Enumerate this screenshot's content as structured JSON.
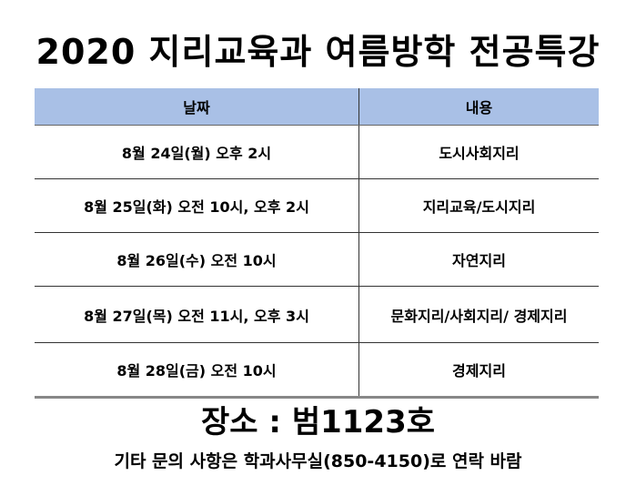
{
  "title": "2020 지리교육과 여름방학 전공특강",
  "table": {
    "headers": [
      "날짜",
      "내용"
    ],
    "rows": [
      {
        "date": "8월 24일(월) 오후 2시",
        "content": "도시사회지리"
      },
      {
        "date": "8월 25일(화) 오전 10시, 오후 2시",
        "content": "지리교육/도시지리"
      },
      {
        "date": "8월 26일(수) 오전 10시",
        "content": "자연지리"
      },
      {
        "date": "8월 27일(목) 오전 11시, 오후 3시",
        "content": "문화지리/사회지리/ 경제지리"
      },
      {
        "date": "8월 28일(금) 오전 10시",
        "content": "경제지리"
      }
    ]
  },
  "place": "장소 : 범1123호",
  "note": "기타 문의 사항은 학과사무실(850-4150)로 연락 바람",
  "colors": {
    "header_bg": "#a9c0e6"
  }
}
